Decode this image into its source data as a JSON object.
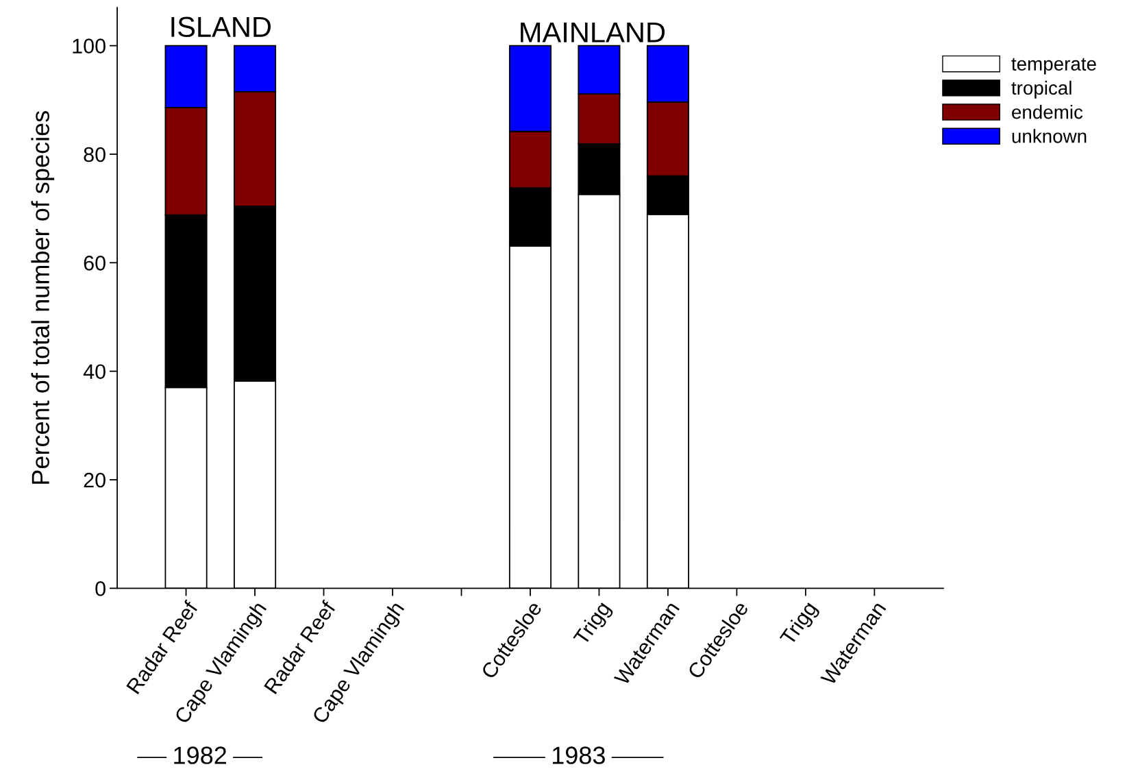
{
  "chart_data": {
    "type": "bar",
    "stacked": true,
    "ylabel": "Percent of total number of species",
    "categories": [
      "Radar Reef",
      "Cape Vlamingh",
      "Radar Reef",
      "Cape Vlamingh",
      null,
      "Cottesloe",
      "Trigg",
      "Waterman",
      "Cottesloe",
      "Trigg",
      "Waterman"
    ],
    "series": [
      {
        "name": "temperate",
        "color": "#ffffff",
        "values": [
          37,
          38.2,
          null,
          null,
          null,
          63.1,
          72.6,
          68.9,
          null,
          null,
          null
        ]
      },
      {
        "name": "tropical",
        "color": "#000000",
        "values": [
          31.8,
          32.2,
          null,
          null,
          null,
          10.7,
          9.3,
          7.1,
          null,
          null,
          null
        ]
      },
      {
        "name": "endemic",
        "color": "#800000",
        "values": [
          19.8,
          21.1,
          null,
          null,
          null,
          10.4,
          9.2,
          13.6,
          null,
          null,
          null
        ]
      },
      {
        "name": "unknown",
        "color": "#0000ff",
        "values": [
          11.4,
          8.5,
          null,
          null,
          null,
          15.8,
          8.9,
          10.4,
          null,
          null,
          null
        ]
      }
    ],
    "ylim": [
      0,
      107
    ],
    "yticks": [
      0,
      20,
      40,
      60,
      80,
      100
    ],
    "grid": false,
    "legend": "top right",
    "annotations": [
      "ISLAND",
      "MAINLAND",
      "1982",
      "1983"
    ]
  }
}
